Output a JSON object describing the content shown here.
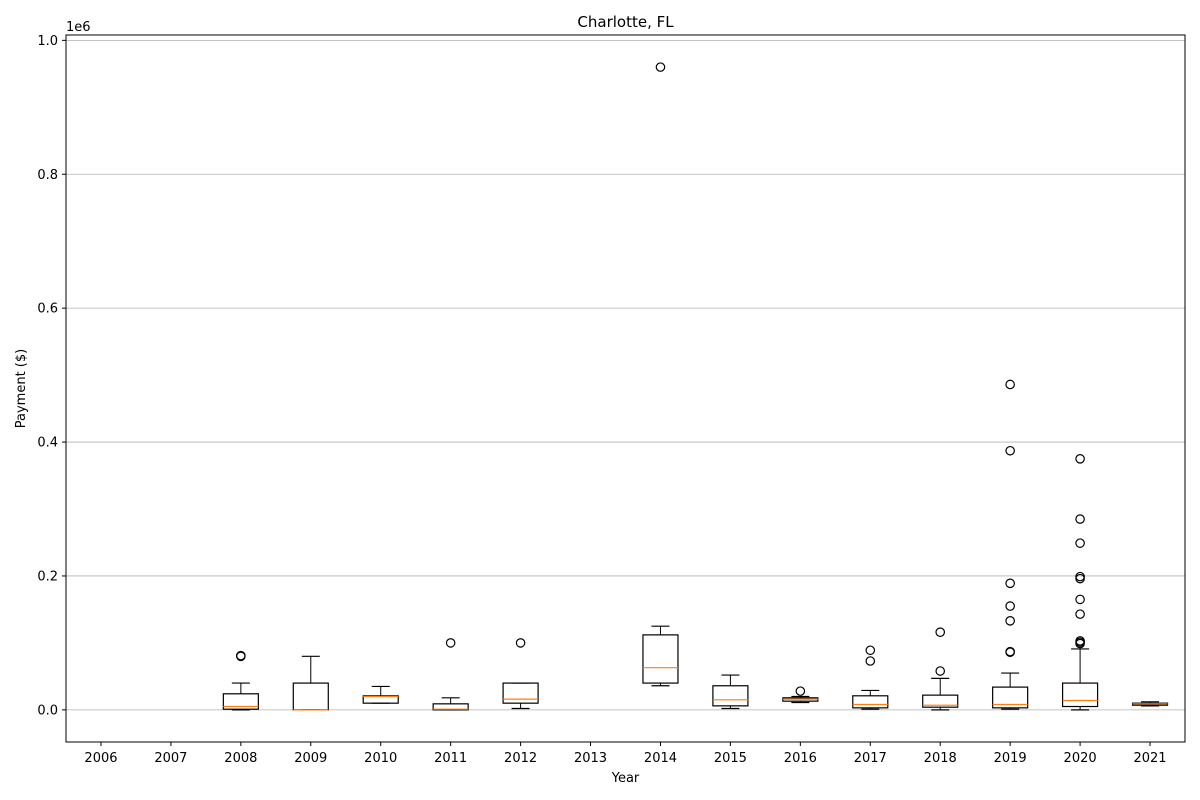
{
  "chart_data": {
    "type": "box",
    "title": "Charlotte, FL",
    "xlabel": "Year",
    "ylabel": "Payment ($)",
    "y_offset_label": "1e6",
    "ylim": [
      -48000,
      1008000
    ],
    "yticks": [
      0,
      200000,
      400000,
      600000,
      800000,
      1000000
    ],
    "ytick_labels": [
      "0.0",
      "0.2",
      "0.4",
      "0.6",
      "0.8",
      "1.0"
    ],
    "grid": "y",
    "categories": [
      "2006",
      "2007",
      "2008",
      "2009",
      "2010",
      "2011",
      "2012",
      "2013",
      "2014",
      "2015",
      "2016",
      "2017",
      "2018",
      "2019",
      "2020",
      "2021"
    ],
    "boxes": [
      null,
      null,
      {
        "whisker_low": 0,
        "q1": 1000,
        "median": 5000,
        "q3": 24000,
        "whisker_high": 40000,
        "outliers": [
          80000,
          81000
        ]
      },
      {
        "whisker_low": 0,
        "q1": 0,
        "median": 0,
        "q3": 40000,
        "whisker_high": 80000,
        "outliers": []
      },
      {
        "whisker_low": 10000,
        "q1": 10000,
        "median": 20000,
        "q3": 21000,
        "whisker_high": 35000,
        "outliers": []
      },
      {
        "whisker_low": 0,
        "q1": 0,
        "median": 1000,
        "q3": 9000,
        "whisker_high": 18000,
        "outliers": [
          100000
        ]
      },
      {
        "whisker_low": 2000,
        "q1": 10000,
        "median": 16000,
        "q3": 40000,
        "whisker_high": 40000,
        "outliers": [
          100000
        ]
      },
      null,
      {
        "whisker_low": 36000,
        "q1": 40000,
        "median": 63000,
        "q3": 112000,
        "whisker_high": 125000,
        "outliers": [
          960000
        ]
      },
      {
        "whisker_low": 2000,
        "q1": 6000,
        "median": 15000,
        "q3": 36000,
        "whisker_high": 52000,
        "outliers": []
      },
      {
        "whisker_low": 11000,
        "q1": 13000,
        "median": 16000,
        "q3": 18000,
        "whisker_high": 20000,
        "outliers": [
          28000
        ]
      },
      {
        "whisker_low": 1000,
        "q1": 3000,
        "median": 8000,
        "q3": 21000,
        "whisker_high": 29000,
        "outliers": [
          73000,
          89000
        ]
      },
      {
        "whisker_low": 0,
        "q1": 4000,
        "median": 7000,
        "q3": 22000,
        "whisker_high": 47000,
        "outliers": [
          58000,
          116000
        ]
      },
      {
        "whisker_low": 1000,
        "q1": 3000,
        "median": 8000,
        "q3": 34000,
        "whisker_high": 55000,
        "outliers": [
          86000,
          87000,
          133000,
          155000,
          189000,
          387000,
          486000
        ]
      },
      {
        "whisker_low": 0,
        "q1": 5000,
        "median": 14000,
        "q3": 40000,
        "whisker_high": 91000,
        "outliers": [
          99000,
          101000,
          103000,
          143000,
          165000,
          196000,
          199000,
          249000,
          285000,
          375000
        ]
      },
      {
        "whisker_low": 6000,
        "q1": 7000,
        "median": 9000,
        "q3": 10000,
        "whisker_high": 12000,
        "outliers": []
      }
    ],
    "colors": {
      "box": "#000000",
      "median": "#ff7f0e",
      "grid": "#b0b0b0",
      "outlier": "#000000"
    }
  }
}
